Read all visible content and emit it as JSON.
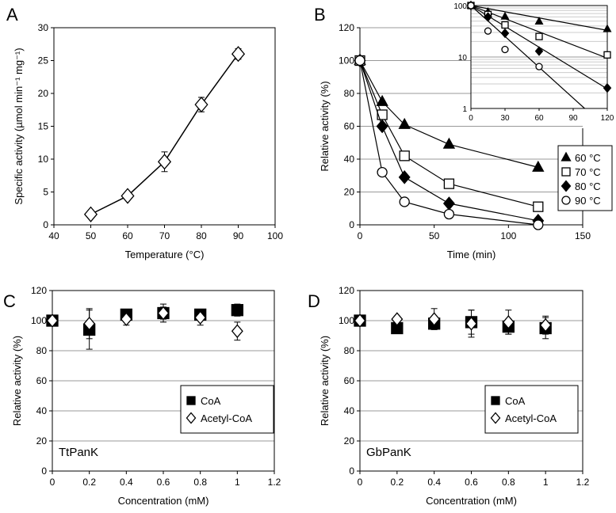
{
  "chart_data": [
    {
      "panel": "A",
      "type": "line",
      "xlabel": "Temperature (°C)",
      "ylabel": "Specific activity (µmol min⁻¹ mg⁻¹)",
      "xlim": [
        40,
        100
      ],
      "ylim": [
        0,
        30
      ],
      "xticks": [
        40,
        50,
        60,
        70,
        80,
        90,
        100
      ],
      "yticks": [
        0,
        5,
        10,
        15,
        20,
        25,
        30
      ],
      "x": [
        50,
        60,
        70,
        80,
        90
      ],
      "y": [
        1.6,
        4.4,
        9.6,
        18.3,
        26.0
      ],
      "err": [
        0.3,
        0.4,
        1.5,
        1.1,
        0.8
      ]
    },
    {
      "panel": "B",
      "type": "line",
      "xlabel": "Time (min)",
      "ylabel": "Relative activity (%)",
      "xlim": [
        0,
        150
      ],
      "ylim": [
        0,
        120
      ],
      "xticks": [
        0,
        50,
        100,
        150
      ],
      "yticks": [
        0,
        20,
        40,
        60,
        80,
        100,
        120
      ],
      "x": [
        0,
        15,
        30,
        60,
        120
      ],
      "series": [
        {
          "name": "60 °C",
          "marker": "triangle",
          "values": [
            100,
            75,
            61,
            49,
            35
          ]
        },
        {
          "name": "70 °C",
          "marker": "square-open",
          "values": [
            100,
            67,
            42,
            25,
            11
          ]
        },
        {
          "name": "80 °C",
          "marker": "diamond",
          "values": [
            100,
            60,
            29,
            13,
            2.5
          ]
        },
        {
          "name": "90 °C",
          "marker": "circle-open",
          "values": [
            100,
            32,
            14,
            6.5,
            0
          ]
        }
      ],
      "inset": {
        "type": "scatter-log",
        "xlim": [
          0,
          120
        ],
        "ylim": [
          1,
          100
        ],
        "xticks": [
          0,
          30,
          60,
          90,
          120
        ],
        "yticks": [
          1,
          10,
          100
        ],
        "fit_at_120": [
          33,
          9.5,
          2.4,
          0.4
        ]
      }
    },
    {
      "panel": "C",
      "type": "scatter",
      "xlabel": "Concentration (mM)",
      "ylabel": "Relative activity (%)",
      "annotation": "TtPanK",
      "xlim": [
        0,
        1.2
      ],
      "ylim": [
        0,
        120
      ],
      "xticks": [
        0,
        0.2,
        0.4,
        0.6,
        0.8,
        1,
        1.2
      ],
      "yticks": [
        0,
        20,
        40,
        60,
        80,
        100,
        120
      ],
      "x": [
        0,
        0.2,
        0.4,
        0.6,
        0.8,
        1
      ],
      "series": [
        {
          "name": "CoA",
          "marker": "square",
          "values": [
            100,
            94,
            104,
            105,
            104,
            107
          ],
          "err": [
            0,
            13,
            3,
            4,
            3,
            4
          ]
        },
        {
          "name": "Acetyl-CoA",
          "marker": "diamond-open",
          "values": [
            100,
            98,
            101,
            105,
            102,
            93
          ],
          "err": [
            0,
            10,
            4,
            6,
            5,
            6
          ]
        }
      ]
    },
    {
      "panel": "D",
      "type": "scatter",
      "xlabel": "Concentration (mM)",
      "ylabel": "Relative activity (%)",
      "annotation": "GbPanK",
      "xlim": [
        0,
        1.2
      ],
      "ylim": [
        0,
        120
      ],
      "xticks": [
        0,
        0.2,
        0.4,
        0.6,
        0.8,
        1,
        1.2
      ],
      "yticks": [
        0,
        20,
        40,
        60,
        80,
        100,
        120
      ],
      "x": [
        0,
        0.2,
        0.4,
        0.6,
        0.8,
        1
      ],
      "series": [
        {
          "name": "CoA",
          "marker": "square",
          "values": [
            100,
            95,
            98,
            99,
            96,
            95
          ],
          "err": [
            0,
            2,
            2,
            8,
            5,
            7
          ]
        },
        {
          "name": "Acetyl-CoA",
          "marker": "diamond-open",
          "values": [
            100,
            101,
            101,
            98,
            99,
            97
          ],
          "err": [
            0,
            2,
            7,
            9,
            8,
            6
          ]
        }
      ]
    }
  ]
}
